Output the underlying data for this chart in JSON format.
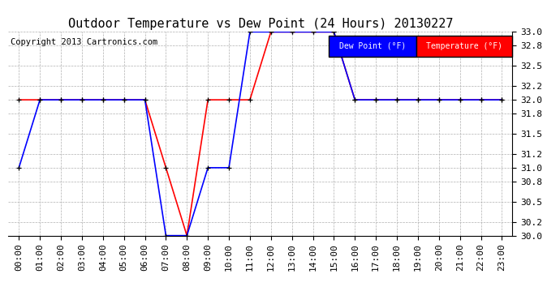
{
  "title": "Outdoor Temperature vs Dew Point (24 Hours) 20130227",
  "copyright": "Copyright 2013 Cartronics.com",
  "background_color": "#ffffff",
  "plot_bg_color": "#ffffff",
  "grid_color": "#b0b0b0",
  "ylim": [
    30.0,
    33.0
  ],
  "yticks": [
    30.0,
    30.2,
    30.5,
    30.8,
    31.0,
    31.2,
    31.5,
    31.8,
    32.0,
    32.2,
    32.5,
    32.8,
    33.0
  ],
  "hours": [
    "00:00",
    "01:00",
    "02:00",
    "03:00",
    "04:00",
    "05:00",
    "06:00",
    "07:00",
    "08:00",
    "09:00",
    "10:00",
    "11:00",
    "12:00",
    "13:00",
    "14:00",
    "15:00",
    "16:00",
    "17:00",
    "18:00",
    "19:00",
    "20:00",
    "21:00",
    "22:00",
    "23:00"
  ],
  "temp_color": "#ff0000",
  "dew_color": "#0000ff",
  "marker_color": "#000000",
  "legend_dew_bg": "#0000ff",
  "legend_temp_bg": "#ff0000",
  "temperature": [
    32.0,
    32.0,
    32.0,
    32.0,
    32.0,
    32.0,
    32.0,
    31.0,
    30.0,
    32.0,
    32.0,
    32.0,
    33.0,
    33.0,
    33.0,
    33.0,
    32.0,
    32.0,
    32.0,
    32.0,
    32.0,
    32.0,
    32.0,
    32.0
  ],
  "dew_point": [
    31.0,
    32.0,
    32.0,
    32.0,
    32.0,
    32.0,
    32.0,
    30.0,
    30.0,
    31.0,
    31.0,
    33.0,
    33.0,
    33.0,
    33.0,
    33.0,
    32.0,
    32.0,
    32.0,
    32.0,
    32.0,
    32.0,
    32.0,
    32.0
  ],
  "title_fontsize": 11,
  "axis_fontsize": 8,
  "copyright_fontsize": 7.5
}
